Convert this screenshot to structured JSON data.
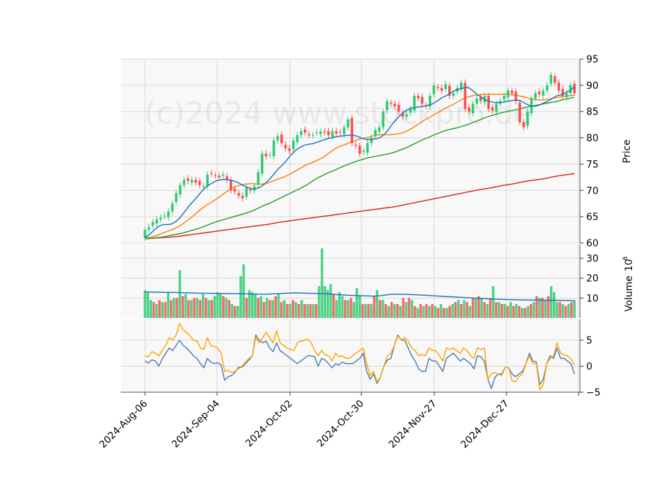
{
  "watermark": "(c)2024 www.stockpro.de",
  "chart_data": [
    {
      "panel": "price",
      "type": "candlestick",
      "ylabel": "Price",
      "ylim": [
        60,
        95
      ],
      "yticks": [
        60,
        65,
        70,
        75,
        80,
        85,
        90,
        95
      ],
      "y_axis_side": "right",
      "grid": true,
      "candles_close": [
        62.5,
        63.0,
        64.0,
        64.5,
        64.8,
        65.2,
        66.0,
        67.5,
        69.5,
        71.0,
        72.0,
        71.8,
        72.0,
        71.5,
        71.0,
        70.8,
        73.0,
        73.2,
        72.8,
        72.5,
        73.0,
        72.0,
        70.0,
        69.8,
        69.0,
        68.5,
        70.5,
        70.0,
        70.8,
        73.5,
        77.0,
        76.5,
        76.8,
        79.5,
        80.3,
        79.0,
        78.0,
        77.5,
        79.5,
        80.5,
        81.3,
        81.0,
        80.5,
        80.6,
        81.0,
        81.2,
        81.0,
        80.5,
        81.3,
        80.8,
        81.0,
        82.0,
        83.5,
        79.0,
        78.5,
        77.0,
        77.5,
        79.0,
        80.0,
        81.5,
        82.0,
        85.0,
        87.0,
        86.5,
        86.0,
        85.0,
        84.0,
        84.5,
        85.5,
        88.0,
        87.5,
        86.5,
        86.0,
        88.0,
        90.0,
        89.5,
        89.0,
        90.2,
        88.0,
        88.5,
        89.5,
        90.5,
        85.5,
        85.0,
        86.5,
        87.5,
        87.0,
        88.0,
        85.5,
        85.2,
        86.5,
        87.0,
        88.0,
        89.0,
        88.5,
        87.0,
        83.0,
        82.0,
        85.0,
        87.5,
        88.5,
        88.3,
        89.0,
        90.0,
        92.0,
        90.5,
        89.0,
        88.0,
        88.5,
        90.0,
        88.5
      ],
      "ma_lines": [
        {
          "values_desc": "fast moving average (blue)",
          "color": "#1f77b4"
        },
        {
          "values_desc": "medium moving average (orange)",
          "color": "#ff7f0e"
        },
        {
          "values_desc": "slow moving average (green)",
          "color": "#2ca02c"
        },
        {
          "values_desc": "long moving average (red)",
          "color": "#d62728"
        }
      ],
      "ma_fast": [
        61.0,
        61.6,
        62.4,
        63.1,
        63.5,
        63.5,
        63.6,
        64.1,
        64.9,
        66.0,
        67.1,
        68.0,
        69.0,
        70.0,
        70.8,
        71.3,
        71.8,
        72.0,
        72.1,
        72.0,
        71.8,
        71.5,
        71.0,
        70.6,
        70.3,
        70.3,
        70.6,
        71.2,
        72.0,
        73.0,
        74.0,
        74.8,
        75.7,
        76.8,
        77.6,
        78.2,
        78.6,
        78.8,
        78.9,
        79.2,
        79.5,
        79.8,
        80.0,
        80.2,
        80.3,
        80.4,
        80.5,
        80.5,
        80.3,
        79.9,
        79.7,
        79.7,
        79.8,
        80.0,
        80.6,
        81.6,
        82.8,
        83.7,
        84.6,
        85.2,
        85.6,
        85.8,
        85.9,
        86.0,
        86.2,
        86.5,
        87.0,
        87.6,
        88.0,
        88.5,
        89.0,
        89.3,
        89.5,
        89.6,
        89.0,
        88.3,
        87.7,
        87.2,
        86.9,
        86.7,
        86.7,
        86.8,
        87.0,
        87.1,
        87.2,
        87.0,
        86.5,
        86.1,
        86.0,
        86.2,
        86.6,
        87.0,
        87.5,
        88.0,
        88.2,
        88.6,
        89.0,
        89.7
      ],
      "ma_medium": [
        61.0,
        61.1,
        61.4,
        61.8,
        62.2,
        62.6,
        63.1,
        63.8,
        64.6,
        65.5,
        66.4,
        67.2,
        67.8,
        68.5,
        69.3,
        70.0,
        70.6,
        71.0,
        71.2,
        71.3,
        71.2,
        71.2,
        71.4,
        71.8,
        72.2,
        72.6,
        73.1,
        73.7,
        74.3,
        74.9,
        75.3,
        75.8,
        76.3,
        77.1,
        77.9,
        78.4,
        78.8,
        79.2,
        79.6,
        79.9,
        80.1,
        80.4,
        80.6,
        80.6,
        80.6,
        80.7,
        80.9,
        81.3,
        81.9,
        82.6,
        83.3,
        83.9,
        84.5,
        85.1,
        85.7,
        86.2,
        86.8,
        87.4,
        87.8,
        88.1,
        88.2,
        88.3,
        88.3,
        88.3,
        88.3,
        88.3,
        88.2,
        88.0,
        87.8,
        87.5,
        87.3,
        87.2,
        87.3,
        87.5,
        87.7,
        87.9,
        88.0,
        88.1
      ],
      "ma_slow": [
        60.8,
        60.9,
        61.0,
        61.1,
        61.3,
        61.5,
        61.7,
        61.9,
        62.2,
        62.5,
        62.8,
        63.2,
        63.6,
        64.0,
        64.3,
        64.6,
        64.9,
        65.2,
        65.5,
        65.8,
        66.2,
        66.7,
        67.2,
        67.6,
        68.1,
        68.6,
        69.1,
        69.6,
        70.1,
        70.6,
        71.2,
        71.9,
        72.5,
        73.0,
        73.5,
        73.9,
        74.4,
        74.8,
        75.2,
        75.6,
        75.9,
        76.2,
        76.4,
        76.6,
        76.8,
        77.0,
        77.3,
        77.7,
        78.1,
        78.6,
        79.1,
        79.6,
        80.0,
        80.5,
        80.9,
        81.3,
        81.6,
        81.8,
        82.1,
        82.4,
        82.8,
        83.2,
        83.6,
        84.0,
        84.3,
        84.6,
        84.9,
        85.1,
        85.3,
        85.5,
        85.8,
        86.0,
        86.2,
        86.4,
        86.6,
        86.8,
        87.0,
        87.3,
        87.5,
        87.7
      ],
      "ma_long": [
        60.8,
        60.9,
        61.0,
        61.1,
        61.2,
        61.4,
        61.6,
        61.8,
        62.0,
        62.2,
        62.4,
        62.6,
        62.8,
        63.0,
        63.2,
        63.4,
        63.6,
        63.9,
        64.1,
        64.3,
        64.5,
        64.7,
        64.9,
        65.1,
        65.3,
        65.5,
        65.7,
        65.9,
        66.1,
        66.3,
        66.5,
        66.7,
        66.9,
        67.2,
        67.5,
        67.8,
        68.1,
        68.4,
        68.7,
        69.0,
        69.3,
        69.6,
        69.9,
        70.2,
        70.4,
        70.7,
        71.0,
        71.2,
        71.5,
        71.8,
        72.0,
        72.2,
        72.5,
        72.8,
        73.0,
        73.2
      ]
    },
    {
      "panel": "volume",
      "type": "bar",
      "ylabel": "Volume  $10^6$",
      "ylabel_text": "Volume",
      "ylabel_exp": "10",
      "ylabel_sup": "6",
      "ylim": [
        0,
        37
      ],
      "yticks": [
        10,
        20,
        30
      ],
      "values": [
        14,
        13,
        9,
        8,
        7,
        9,
        8,
        8,
        13,
        9,
        10,
        10,
        24,
        11,
        12,
        9,
        9,
        10,
        10,
        9,
        12,
        10,
        9,
        9,
        11,
        13,
        12,
        11,
        10,
        9,
        7,
        6,
        6,
        21,
        27,
        10,
        14,
        13,
        12,
        10,
        11,
        8,
        10,
        9,
        9,
        11,
        12,
        8,
        9,
        7,
        7,
        9,
        8,
        7,
        9,
        7,
        7,
        7,
        7,
        7,
        16,
        35,
        16,
        14,
        17,
        12,
        9,
        13,
        11,
        9,
        9,
        10,
        8,
        15,
        11,
        7,
        7,
        7,
        7,
        11,
        14,
        9,
        9,
        7,
        6,
        8,
        7,
        7,
        6,
        10,
        8,
        10,
        9,
        6,
        5,
        7,
        6,
        7,
        6,
        7,
        6,
        5,
        7,
        5,
        5,
        6,
        7,
        8,
        9,
        7,
        9,
        8,
        6,
        10,
        10,
        11,
        10,
        8,
        7,
        10,
        16,
        8,
        8,
        7,
        7,
        6,
        8,
        6,
        7,
        6,
        5,
        5,
        6,
        7,
        8,
        11,
        10,
        10,
        9,
        11,
        16,
        13,
        8,
        8,
        7,
        6,
        7,
        8,
        9
      ],
      "up_color": "#2ecc71",
      "down_color": "#ff4d4d",
      "avg_line_color": "#1f77b4",
      "avg_values": [
        13.0,
        13.0,
        12.9,
        12.8,
        12.8,
        12.7,
        12.6,
        12.5,
        12.4,
        12.4,
        12.3,
        12.3,
        12.2,
        12.2,
        12.1,
        12.0,
        12.0,
        11.9,
        12.1,
        12.3,
        12.5,
        12.6,
        12.5,
        12.4,
        12.3,
        12.2,
        12.0,
        11.7,
        11.5,
        11.3,
        11.2,
        11.1,
        11.0,
        11.2,
        11.8,
        12.0,
        11.9,
        11.8,
        11.6,
        11.4,
        11.2,
        11.0,
        10.8,
        10.6,
        10.4,
        10.2,
        10.0,
        9.8,
        9.6,
        9.4,
        9.3,
        9.2,
        9.1,
        9.0,
        9.0,
        9.0,
        8.9,
        8.9,
        8.8,
        8.8,
        8.7
      ]
    },
    {
      "panel": "oscillator",
      "type": "line",
      "ylim": [
        -5,
        9
      ],
      "yticks": [
        -5,
        0,
        5
      ],
      "series": [
        {
          "color": "#4a7fb5",
          "values": [
            1.0,
            0.6,
            1.2,
            1.0,
            0.0,
            1.5,
            2.5,
            3.5,
            3.0,
            4.0,
            5.0,
            4.0,
            3.5,
            2.8,
            2.0,
            1.5,
            0.5,
            -0.3,
            1.5,
            0.8,
            0.5,
            0.7,
            0.2,
            -2.7,
            -2.0,
            -1.8,
            -1.2,
            -0.2,
            -0.2,
            0.5,
            1.2,
            2.0,
            6.0,
            5.0,
            4.5,
            4.8,
            3.5,
            2.8,
            4.5,
            3.0,
            2.5,
            2.0,
            1.5,
            1.0,
            0.5,
            1.0,
            1.5,
            2.0,
            2.0,
            1.8,
            0.0,
            1.5,
            1.2,
            0.5,
            -0.3,
            0.5,
            0.2,
            0.8,
            0.5,
            0.5,
            0.5,
            1.0,
            1.5,
            2.5,
            -1.0,
            -2.5,
            -1.5,
            -3.3,
            -2.0,
            0.0,
            1.2,
            1.5,
            4.0,
            6.0,
            5.0,
            5.0,
            3.5,
            2.0,
            1.0,
            -0.5,
            -1.0,
            -1.0,
            1.5,
            1.0,
            1.0,
            0.0,
            -1.0,
            1.5,
            2.0,
            2.5,
            1.8,
            1.0,
            1.5,
            1.0,
            0.5,
            -0.5,
            2.0,
            1.8,
            1.0,
            -2.5,
            -4.3,
            -2.2,
            -1.5,
            -1.5,
            -0.2,
            -0.3,
            -1.5,
            -2.0,
            -1.5,
            -1.0,
            0.5,
            2.5,
            1.0,
            0.8,
            -3.5,
            -2.5,
            0.5,
            2.0,
            1.5,
            3.5,
            1.5,
            1.5,
            1.0,
            0.5,
            -1.5
          ]
        },
        {
          "color": "#ffa500",
          "values": [
            2.0,
            1.8,
            2.8,
            2.5,
            2.0,
            3.0,
            4.0,
            5.5,
            5.0,
            6.0,
            8.2,
            7.0,
            6.5,
            5.8,
            5.0,
            4.8,
            3.5,
            3.2,
            5.5,
            4.0,
            3.8,
            3.5,
            2.5,
            -1.0,
            -0.8,
            -1.2,
            -1.0,
            -0.5,
            0.0,
            0.8,
            1.5,
            2.0,
            5.5,
            4.5,
            5.5,
            6.5,
            5.5,
            4.5,
            6.8,
            4.5,
            4.0,
            3.5,
            3.2,
            3.0,
            4.5,
            4.8,
            5.0,
            5.2,
            4.5,
            3.0,
            2.0,
            3.0,
            2.2,
            2.0,
            1.0,
            2.5,
            1.8,
            2.0,
            1.5,
            1.5,
            2.0,
            2.5,
            3.0,
            3.5,
            0.5,
            -1.8,
            -1.0,
            -3.0,
            -2.0,
            0.0,
            2.0,
            2.5,
            4.0,
            5.8,
            5.0,
            5.5,
            4.8,
            3.5,
            3.0,
            2.0,
            2.2,
            2.0,
            3.5,
            3.0,
            3.0,
            2.0,
            1.0,
            3.5,
            3.2,
            3.5,
            3.0,
            2.5,
            3.5,
            3.0,
            2.0,
            1.5,
            3.5,
            3.2,
            3.5,
            -2.5,
            -1.5,
            -1.2,
            -1.5,
            -1.8,
            -0.2,
            -0.3,
            -2.8,
            -3.0,
            -2.0,
            -1.5,
            0.5,
            2.0,
            0.5,
            0.5,
            -4.5,
            -3.5,
            0.5,
            1.5,
            2.0,
            4.5,
            2.5,
            2.2,
            2.0,
            1.5,
            0.2
          ]
        }
      ]
    }
  ],
  "x_axis": {
    "tick_labels": [
      "2024-Aug-06",
      "2024-Sep-04",
      "2024-Oct-02",
      "2024-Oct-30",
      "2024-Nov-27",
      "2024-Dec-27"
    ]
  }
}
